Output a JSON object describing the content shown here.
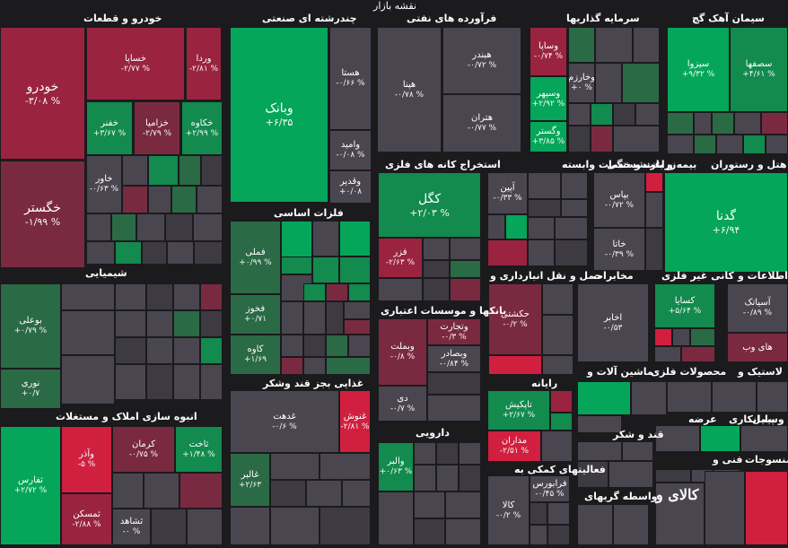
{
  "title": "نقشه بازار",
  "watermark": "کالای و",
  "colors": {
    "strong_up": "#05a65a",
    "up": "#138a4e",
    "weak_up": "#2a6a45",
    "strong_down": "#d11f3f",
    "down": "#9a2340",
    "weak_down": "#7a2a40",
    "neutral": "#4a4650"
  },
  "sectors": [
    {
      "name": "خودرو و قطعات"
    },
    {
      "name": "چندرشته ای صنعتی"
    },
    {
      "name": "فرآورده های نفتی"
    },
    {
      "name": "سرمایه گذاریها"
    },
    {
      "name": "سیمان آهک گچ"
    },
    {
      "name": "استخراج کانه های فلزی"
    },
    {
      "name": "زراعت و خدمات وابسته"
    },
    {
      "name": "بیمه و بازنشستگی"
    },
    {
      "name": "هتل و رستوران"
    },
    {
      "name": "فلزات اساسی"
    },
    {
      "name": "شیمیایی"
    },
    {
      "name": "حمل و نقل انبارداری و"
    },
    {
      "name": "مخابرات"
    },
    {
      "name": "کانی غیر فلزی"
    },
    {
      "name": "اطلاعات و"
    },
    {
      "name": "بانکها و موسسات اعتباری"
    },
    {
      "name": "ماشین آلات و"
    },
    {
      "name": "محصولات فلزی"
    },
    {
      "name": "لاستیک و"
    },
    {
      "name": "انبوه سازی املاک و مستغلات"
    },
    {
      "name": "غذایی بجز قند وشکر"
    },
    {
      "name": "رایانه"
    },
    {
      "name": "عرضه"
    },
    {
      "name": "پیمانکاری"
    },
    {
      "name": "وسایل"
    },
    {
      "name": "دارویی"
    },
    {
      "name": "قند و شکر"
    },
    {
      "name": "فعالیتهای کمکی به"
    },
    {
      "name": "فنی و"
    },
    {
      "name": "منسوجات"
    },
    {
      "name": "واسطه گریهای"
    }
  ],
  "tiles": [
    {
      "s": "خودرو",
      "p": "-۳/۰۸ %"
    },
    {
      "s": "خساپا",
      "p": "-۲/۷۷ %"
    },
    {
      "s": "وردا",
      "p": "-۲/۸۱ %"
    },
    {
      "s": "خفنر",
      "p": "+۳/۶۷ %"
    },
    {
      "s": "خزامیا",
      "p": "-۲/۷۹ %"
    },
    {
      "s": "خکاوه",
      "p": "+۲/۹۹ %"
    },
    {
      "s": "خگستر",
      "p": "-۱/۹۹ %"
    },
    {
      "s": "خاور",
      "p": "-۰/۶۳ %"
    },
    {
      "s": "وبانک",
      "p": "+۶/۳۵"
    },
    {
      "s": "هستا",
      "p": "-۰/۶۶ %"
    },
    {
      "s": "وامید",
      "p": "-۰/۰۸ %"
    },
    {
      "s": "وقدیر",
      "p": "+۰/۰۸"
    },
    {
      "s": "هبندر",
      "p": "-۰/۷۲ %"
    },
    {
      "s": "هپنا",
      "p": "-۰/۷۸ %"
    },
    {
      "s": "هتران",
      "p": "-۰/۷۷ %"
    },
    {
      "s": "وساپا",
      "p": "-۰/۷۴ %"
    },
    {
      "s": "وخارزم",
      "p": "+۰ %"
    },
    {
      "s": "وسپهر",
      "p": "+۲/۹۲ %"
    },
    {
      "s": "وگستر",
      "p": "+۳/۸۵ %"
    },
    {
      "s": "سیزوا",
      "p": "+۹/۳۲ %"
    },
    {
      "s": "سصفها",
      "p": "+۴/۶۱ %"
    },
    {
      "s": "کگل",
      "p": "+۲/۰۳ %"
    },
    {
      "s": "فزر",
      "p": "-۲/۶۳ %"
    },
    {
      "s": "آپین",
      "p": "-۰/۳۳ %"
    },
    {
      "s": "بپاس",
      "p": "-۰/۷۲ %"
    },
    {
      "s": "خاتا",
      "p": "-۰/۳۹ %"
    },
    {
      "s": "گدنا",
      "p": "+۶/۹۴"
    },
    {
      "s": "فملی",
      "p": "+۰/۹۹ %"
    },
    {
      "s": "فخوز",
      "p": "+۰/۷۱"
    },
    {
      "s": "کاوه",
      "p": "+۱/۶۹"
    },
    {
      "s": "بوعلی",
      "p": "+۰/۷۹ %"
    },
    {
      "s": "نوری",
      "p": "+۰/۷"
    },
    {
      "s": "حکشتی",
      "p": "-۰/۲ %"
    },
    {
      "s": "اخابر",
      "p": "-۰/۵۳"
    },
    {
      "s": "کسایا",
      "p": "+۵/۶۴ %"
    },
    {
      "s": "آسیاتک",
      "p": "-۰/۸۹ %"
    },
    {
      "s": "های وب",
      "p": ""
    },
    {
      "s": "وتجارت",
      "p": "-۰/۳ %"
    },
    {
      "s": "وبملت",
      "p": "-۰/۸ %"
    },
    {
      "s": "وبصادر",
      "p": "-۰/۸۴ %"
    },
    {
      "s": "دی",
      "p": "-۰/۷ %"
    },
    {
      "s": "ثفارس",
      "p": "+۲/۷۲ %"
    },
    {
      "s": "وآذر",
      "p": "-۵ %"
    },
    {
      "s": "ثمسکن",
      "p": "-۲/۸۸ %"
    },
    {
      "s": "کرمان",
      "p": "-۰/۷۵ %"
    },
    {
      "s": "ثاخت",
      "p": "+۱/۴۸ %"
    },
    {
      "s": "ثشاهد",
      "p": "-۰ %"
    },
    {
      "s": "غدهت",
      "p": "-۰/۶ %"
    },
    {
      "s": "غنوش",
      "p": "-۲/۸۱ %"
    },
    {
      "s": "غالبر",
      "p": "+۲/۶۳"
    },
    {
      "s": "تاپکیش",
      "p": "+۲/۶۷ %"
    },
    {
      "s": "مداران",
      "p": "-۲/۵۱ %"
    },
    {
      "s": "والبر",
      "p": "+۰/۶۳ %"
    },
    {
      "s": "فرابورس",
      "p": "-۰/۴۵ %"
    },
    {
      "s": "کالا",
      "p": "-۰/۲ %"
    }
  ]
}
